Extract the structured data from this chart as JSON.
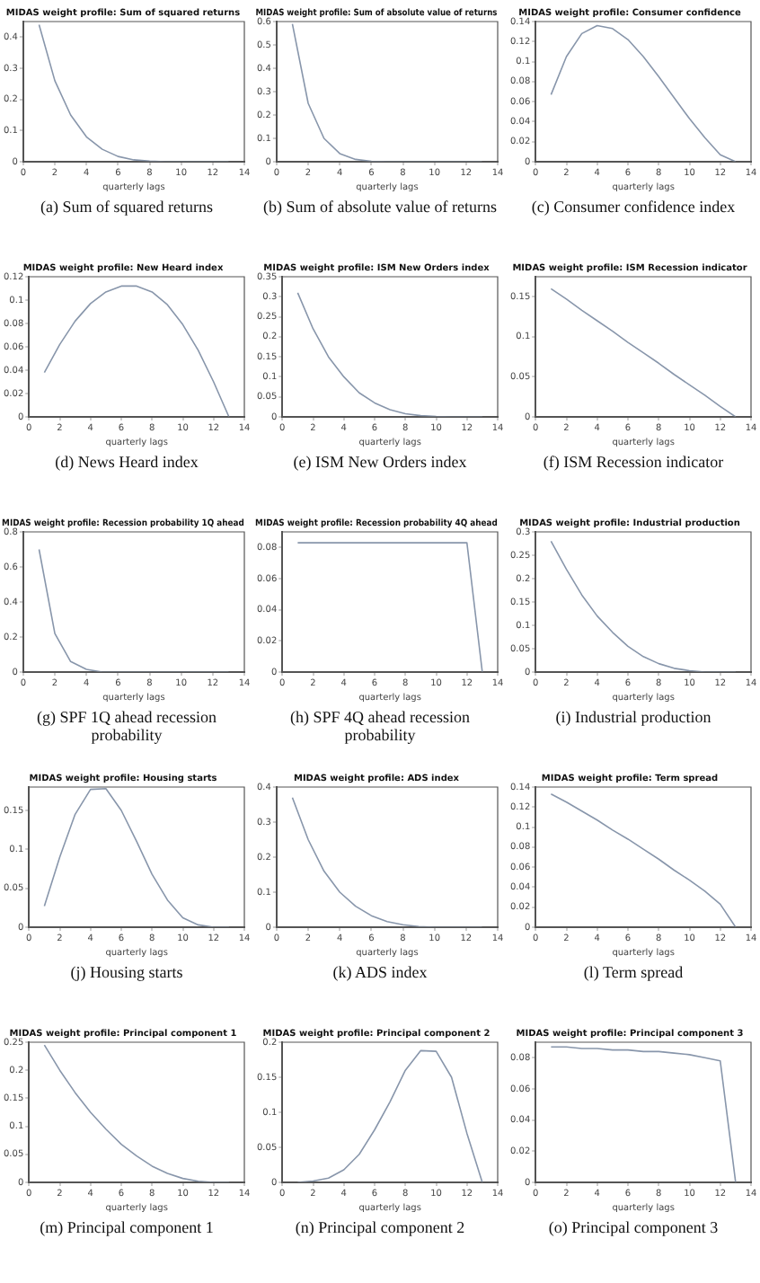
{
  "chart_data": [
    {
      "type": "line",
      "title": "MIDAS weight profile: Sum of squared returns",
      "xlabel": "quarterly lags",
      "annotations": [
        "(a) Sum of squared returns"
      ],
      "x": [
        1,
        2,
        3,
        4,
        5,
        6,
        7,
        8,
        9,
        10,
        11,
        12,
        13
      ],
      "values": [
        0.44,
        0.26,
        0.15,
        0.08,
        0.04,
        0.017,
        0.006,
        0.002,
        0,
        0,
        0,
        0,
        0
      ],
      "color": "#8896ab",
      "xlim": [
        0,
        14
      ],
      "xticks": [
        0,
        2,
        4,
        6,
        8,
        10,
        12,
        14
      ],
      "ylim": [
        0,
        0.45
      ],
      "yticks": [
        0,
        0.1,
        0.2,
        0.3,
        0.4
      ],
      "grid": false,
      "legend": false
    },
    {
      "type": "line",
      "title": "MIDAS weight profile: Sum of absolute value of returns",
      "xlabel": "quarterly lags",
      "annotations": [
        "(b) Sum of absolute value of returns"
      ],
      "x": [
        1,
        2,
        3,
        4,
        5,
        6,
        7,
        8,
        9,
        10,
        11,
        12,
        13
      ],
      "values": [
        0.59,
        0.25,
        0.1,
        0.035,
        0.01,
        0.002,
        0,
        0,
        0,
        0,
        0,
        0,
        0
      ],
      "color": "#8896ab",
      "xlim": [
        0,
        14
      ],
      "xticks": [
        0,
        2,
        4,
        6,
        8,
        10,
        12,
        14
      ],
      "ylim": [
        0,
        0.6
      ],
      "yticks": [
        0,
        0.1,
        0.2,
        0.3,
        0.4,
        0.5,
        0.6
      ],
      "grid": false,
      "legend": false
    },
    {
      "type": "line",
      "title": "MIDAS weight profile: Consumer confidence",
      "xlabel": "quarterly lags",
      "annotations": [
        "(c) Consumer confidence index"
      ],
      "x": [
        1,
        2,
        3,
        4,
        5,
        6,
        7,
        8,
        9,
        10,
        11,
        12,
        13
      ],
      "values": [
        0.067,
        0.105,
        0.128,
        0.136,
        0.133,
        0.122,
        0.105,
        0.085,
        0.064,
        0.043,
        0.024,
        0.007,
        0
      ],
      "color": "#8896ab",
      "xlim": [
        0,
        14
      ],
      "xticks": [
        0,
        2,
        4,
        6,
        8,
        10,
        12,
        14
      ],
      "ylim": [
        0,
        0.14
      ],
      "yticks": [
        0,
        0.02,
        0.04,
        0.06,
        0.08,
        0.1,
        0.12,
        0.14
      ],
      "grid": false,
      "legend": false
    },
    {
      "type": "line",
      "title": "MIDAS weight profile: New Heard index",
      "xlabel": "quarterly lags",
      "annotations": [
        "(d) News Heard index"
      ],
      "x": [
        1,
        2,
        3,
        4,
        5,
        6,
        7,
        8,
        9,
        10,
        11,
        12,
        13
      ],
      "values": [
        0.038,
        0.062,
        0.082,
        0.097,
        0.107,
        0.112,
        0.112,
        0.107,
        0.096,
        0.079,
        0.057,
        0.03,
        0
      ],
      "color": "#8896ab",
      "xlim": [
        0,
        14
      ],
      "xticks": [
        0,
        2,
        4,
        6,
        8,
        10,
        12,
        14
      ],
      "ylim": [
        0,
        0.12
      ],
      "yticks": [
        0,
        0.02,
        0.04,
        0.06,
        0.08,
        0.1,
        0.12
      ],
      "grid": false,
      "legend": false
    },
    {
      "type": "line",
      "title": "MIDAS weight profile: ISM New Orders index",
      "xlabel": "quarterly lags",
      "annotations": [
        "(e) ISM New Orders index"
      ],
      "x": [
        1,
        2,
        3,
        4,
        5,
        6,
        7,
        8,
        9,
        10,
        11,
        12,
        13
      ],
      "values": [
        0.31,
        0.22,
        0.15,
        0.1,
        0.06,
        0.035,
        0.018,
        0.008,
        0.003,
        0.001,
        0,
        0,
        0
      ],
      "color": "#8896ab",
      "xlim": [
        0,
        14
      ],
      "xticks": [
        0,
        2,
        4,
        6,
        8,
        10,
        12,
        14
      ],
      "ylim": [
        0,
        0.35
      ],
      "yticks": [
        0,
        0.05,
        0.1,
        0.15,
        0.2,
        0.25,
        0.3,
        0.35
      ],
      "grid": false,
      "legend": false
    },
    {
      "type": "line",
      "title": "MIDAS weight profile: ISM Recession indicator",
      "xlabel": "quarterly lags",
      "annotations": [
        "(f) ISM Recession indicator"
      ],
      "x": [
        1,
        2,
        3,
        4,
        5,
        6,
        7,
        8,
        9,
        10,
        11,
        12,
        13
      ],
      "values": [
        0.16,
        0.147,
        0.133,
        0.12,
        0.107,
        0.093,
        0.08,
        0.067,
        0.053,
        0.04,
        0.027,
        0.013,
        0
      ],
      "color": "#8896ab",
      "xlim": [
        0,
        14
      ],
      "xticks": [
        0,
        2,
        4,
        6,
        8,
        10,
        12,
        14
      ],
      "ylim": [
        0,
        0.175
      ],
      "yticks": [
        0,
        0.05,
        0.1,
        0.15
      ],
      "grid": false,
      "legend": false
    },
    {
      "type": "line",
      "title": "MIDAS weight profile: Recession probability 1Q ahead",
      "xlabel": "quarterly lags",
      "annotations": [
        "(g) SPF 1Q ahead recession probability"
      ],
      "x": [
        1,
        2,
        3,
        4,
        5,
        6,
        7,
        8,
        9,
        10,
        11,
        12,
        13
      ],
      "values": [
        0.7,
        0.22,
        0.06,
        0.015,
        0,
        0,
        0,
        0,
        0,
        0,
        0,
        0,
        0
      ],
      "color": "#8896ab",
      "xlim": [
        0,
        14
      ],
      "xticks": [
        0,
        2,
        4,
        6,
        8,
        10,
        12,
        14
      ],
      "ylim": [
        0,
        0.8
      ],
      "yticks": [
        0,
        0.2,
        0.4,
        0.6,
        0.8
      ],
      "grid": false,
      "legend": false
    },
    {
      "type": "line",
      "title": "MIDAS weight profile: Recession probability 4Q ahead",
      "xlabel": "quarterly lags",
      "annotations": [
        "(h) SPF 4Q ahead recession probability"
      ],
      "x": [
        1,
        2,
        3,
        4,
        5,
        6,
        7,
        8,
        9,
        10,
        11,
        12,
        13
      ],
      "values": [
        0.083,
        0.083,
        0.083,
        0.083,
        0.083,
        0.083,
        0.083,
        0.083,
        0.083,
        0.083,
        0.083,
        0.083,
        0
      ],
      "color": "#8896ab",
      "xlim": [
        0,
        14
      ],
      "xticks": [
        0,
        2,
        4,
        6,
        8,
        10,
        12,
        14
      ],
      "ylim": [
        0,
        0.09
      ],
      "yticks": [
        0,
        0.02,
        0.04,
        0.06,
        0.08
      ],
      "grid": false,
      "legend": false
    },
    {
      "type": "line",
      "title": "MIDAS weight profile: Industrial production",
      "xlabel": "quarterly lags",
      "annotations": [
        "(i) Industrial production"
      ],
      "x": [
        1,
        2,
        3,
        4,
        5,
        6,
        7,
        8,
        9,
        10,
        11,
        12,
        13
      ],
      "values": [
        0.28,
        0.22,
        0.165,
        0.12,
        0.085,
        0.055,
        0.033,
        0.018,
        0.008,
        0.003,
        0,
        0,
        0
      ],
      "color": "#8896ab",
      "xlim": [
        0,
        14
      ],
      "xticks": [
        0,
        2,
        4,
        6,
        8,
        10,
        12,
        14
      ],
      "ylim": [
        0,
        0.3
      ],
      "yticks": [
        0,
        0.05,
        0.1,
        0.15,
        0.2,
        0.25,
        0.3
      ],
      "grid": false,
      "legend": false
    },
    {
      "type": "line",
      "title": "MIDAS weight profile: Housing starts",
      "xlabel": "quarterly lags",
      "annotations": [
        "(j) Housing starts"
      ],
      "x": [
        1,
        2,
        3,
        4,
        5,
        6,
        7,
        8,
        9,
        10,
        11,
        12,
        13
      ],
      "values": [
        0.027,
        0.09,
        0.145,
        0.177,
        0.178,
        0.15,
        0.11,
        0.068,
        0.035,
        0.012,
        0.003,
        0,
        0
      ],
      "color": "#8896ab",
      "xlim": [
        0,
        14
      ],
      "xticks": [
        0,
        2,
        4,
        6,
        8,
        10,
        12,
        14
      ],
      "ylim": [
        0,
        0.18
      ],
      "yticks": [
        0,
        0.05,
        0.1,
        0.15
      ],
      "grid": false,
      "legend": false
    },
    {
      "type": "line",
      "title": "MIDAS weight profile: ADS index",
      "xlabel": "quarterly lags",
      "annotations": [
        "(k) ADS index"
      ],
      "x": [
        1,
        2,
        3,
        4,
        5,
        6,
        7,
        8,
        9,
        10,
        11,
        12,
        13
      ],
      "values": [
        0.37,
        0.25,
        0.16,
        0.1,
        0.06,
        0.033,
        0.016,
        0.007,
        0.002,
        0,
        0,
        0,
        0
      ],
      "color": "#8896ab",
      "xlim": [
        0,
        14
      ],
      "xticks": [
        0,
        2,
        4,
        6,
        8,
        10,
        12,
        14
      ],
      "ylim": [
        0,
        0.4
      ],
      "yticks": [
        0,
        0.1,
        0.2,
        0.3,
        0.4
      ],
      "grid": false,
      "legend": false
    },
    {
      "type": "line",
      "title": "MIDAS weight profile: Term spread",
      "xlabel": "quarterly lags",
      "annotations": [
        "(l) Term spread"
      ],
      "x": [
        1,
        2,
        3,
        4,
        5,
        6,
        7,
        8,
        9,
        10,
        11,
        12,
        13
      ],
      "values": [
        0.133,
        0.125,
        0.116,
        0.107,
        0.097,
        0.088,
        0.078,
        0.068,
        0.057,
        0.047,
        0.036,
        0.023,
        0
      ],
      "color": "#8896ab",
      "xlim": [
        0,
        14
      ],
      "xticks": [
        0,
        2,
        4,
        6,
        8,
        10,
        12,
        14
      ],
      "ylim": [
        0,
        0.14
      ],
      "yticks": [
        0,
        0.02,
        0.04,
        0.06,
        0.08,
        0.1,
        0.12,
        0.14
      ],
      "grid": false,
      "legend": false
    },
    {
      "type": "line",
      "title": "MIDAS weight profile: Principal component 1",
      "xlabel": "quarterly lags",
      "annotations": [
        "(m) Principal component 1"
      ],
      "x": [
        1,
        2,
        3,
        4,
        5,
        6,
        7,
        8,
        9,
        10,
        11,
        12,
        13
      ],
      "values": [
        0.245,
        0.2,
        0.16,
        0.125,
        0.095,
        0.068,
        0.047,
        0.029,
        0.016,
        0.007,
        0.002,
        0,
        0
      ],
      "color": "#8896ab",
      "xlim": [
        0,
        14
      ],
      "xticks": [
        0,
        2,
        4,
        6,
        8,
        10,
        12,
        14
      ],
      "ylim": [
        0,
        0.25
      ],
      "yticks": [
        0,
        0.05,
        0.1,
        0.15,
        0.2,
        0.25
      ],
      "grid": false,
      "legend": false
    },
    {
      "type": "line",
      "title": "MIDAS weight profile: Principal component 2",
      "xlabel": "quarterly lags",
      "annotations": [
        "(n) Principal component 2"
      ],
      "x": [
        1,
        2,
        3,
        4,
        5,
        6,
        7,
        8,
        9,
        10,
        11,
        12,
        13
      ],
      "values": [
        0,
        0.002,
        0.006,
        0.018,
        0.04,
        0.075,
        0.115,
        0.16,
        0.188,
        0.187,
        0.15,
        0.07,
        0
      ],
      "color": "#8896ab",
      "xlim": [
        0,
        14
      ],
      "xticks": [
        0,
        2,
        4,
        6,
        8,
        10,
        12,
        14
      ],
      "ylim": [
        0,
        0.2
      ],
      "yticks": [
        0,
        0.05,
        0.1,
        0.15,
        0.2
      ],
      "grid": false,
      "legend": false
    },
    {
      "type": "line",
      "title": "MIDAS weight profile: Principal component 3",
      "xlabel": "quarterly lags",
      "annotations": [
        "(o) Principal component 3"
      ],
      "x": [
        1,
        2,
        3,
        4,
        5,
        6,
        7,
        8,
        9,
        10,
        11,
        12,
        13
      ],
      "values": [
        0.087,
        0.087,
        0.086,
        0.086,
        0.085,
        0.085,
        0.084,
        0.084,
        0.083,
        0.082,
        0.08,
        0.078,
        0
      ],
      "color": "#8896ab",
      "xlim": [
        0,
        14
      ],
      "xticks": [
        0,
        2,
        4,
        6,
        8,
        10,
        12,
        14
      ],
      "ylim": [
        0,
        0.09
      ],
      "yticks": [
        0,
        0.02,
        0.04,
        0.06,
        0.08
      ],
      "grid": false,
      "legend": false
    }
  ]
}
